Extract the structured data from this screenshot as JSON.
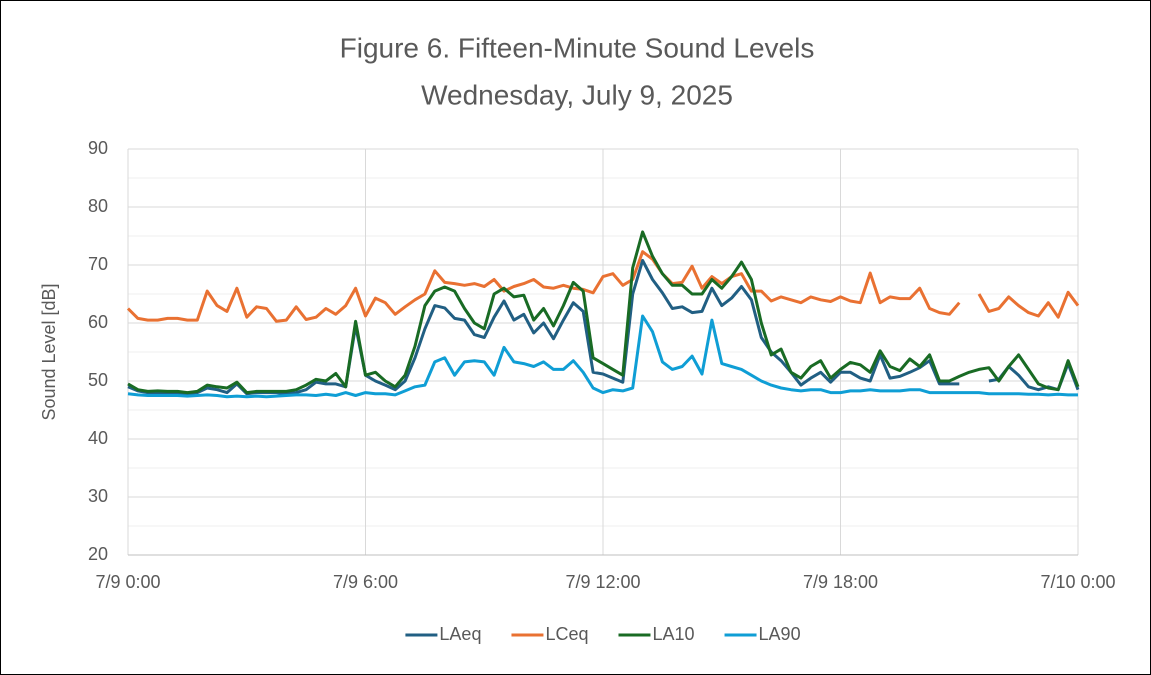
{
  "chart_data": {
    "type": "line",
    "title": "Figure 6. Fifteen-Minute Sound Levels",
    "subtitle": "Wednesday, July 9, 2025",
    "ylabel": "Sound Level [dB]",
    "x": [
      0,
      0.25,
      0.5,
      0.75,
      1,
      1.25,
      1.5,
      1.75,
      2,
      2.25,
      2.5,
      2.75,
      3,
      3.25,
      3.5,
      3.75,
      4,
      4.25,
      4.5,
      4.75,
      5,
      5.25,
      5.5,
      5.75,
      6,
      6.25,
      6.5,
      6.75,
      7,
      7.25,
      7.5,
      7.75,
      8,
      8.25,
      8.5,
      8.75,
      9,
      9.25,
      9.5,
      9.75,
      10,
      10.25,
      10.5,
      10.75,
      11,
      11.25,
      11.5,
      11.75,
      12,
      12.25,
      12.5,
      12.75,
      13,
      13.25,
      13.5,
      13.75,
      14,
      14.25,
      14.5,
      14.75,
      15,
      15.25,
      15.5,
      15.75,
      16,
      16.25,
      16.5,
      16.75,
      17,
      17.25,
      17.5,
      17.75,
      18,
      18.25,
      18.5,
      18.75,
      19,
      19.25,
      19.5,
      19.75,
      20,
      20.25,
      20.5,
      20.75,
      21,
      21.25,
      21.5,
      21.75,
      22,
      22.25,
      22.5,
      22.75,
      23,
      23.25,
      23.5,
      23.75,
      24
    ],
    "series": [
      {
        "name": "LAeq",
        "color": "#215f83",
        "values": [
          49,
          48.3,
          48,
          48,
          48,
          47.8,
          47.8,
          48,
          48.8,
          48.5,
          48,
          49.5,
          47.8,
          48,
          48,
          48,
          47.8,
          48,
          48.5,
          49.8,
          49.5,
          49.5,
          49,
          59.5,
          51,
          50,
          49.3,
          48.5,
          50,
          54,
          59,
          63,
          62.6,
          60.8,
          60.5,
          58,
          57.5,
          61,
          63.8,
          60.5,
          61.5,
          58.3,
          60,
          57.3,
          60.5,
          63.5,
          62,
          51.5,
          51.2,
          50.5,
          49.8,
          65,
          70.8,
          67.5,
          65.2,
          62.5,
          62.8,
          61.8,
          62,
          66,
          63,
          64.3,
          66.3,
          64,
          57.5,
          55,
          53.5,
          51.5,
          49.3,
          50.5,
          51.5,
          49.8,
          51.5,
          51.5,
          50.5,
          50,
          54.5,
          50.5,
          50.8,
          51.5,
          52.3,
          53.5,
          49.5,
          49.5,
          49.5,
          null,
          null,
          50,
          50.3,
          52.5,
          51,
          49,
          48.5,
          49,
          48.5,
          53,
          48.5
        ]
      },
      {
        "name": "LCeq",
        "color": "#e97132",
        "values": [
          62.5,
          60.8,
          60.5,
          60.5,
          60.8,
          60.8,
          60.5,
          60.5,
          65.5,
          63,
          62,
          66,
          61,
          62.8,
          62.5,
          60.3,
          60.5,
          62.8,
          60.6,
          61,
          62.5,
          61.5,
          63,
          66,
          61.2,
          64.3,
          63.5,
          61.5,
          62.8,
          64,
          65,
          69,
          67,
          66.8,
          66.5,
          66.8,
          66.3,
          67.5,
          65.5,
          66.3,
          66.8,
          67.5,
          66.2,
          66,
          66.5,
          66,
          65.8,
          65.2,
          68,
          68.5,
          66.5,
          67.5,
          72.3,
          71,
          68.5,
          66.8,
          67,
          69.8,
          66,
          68,
          66.8,
          68,
          68.5,
          65.5,
          65.5,
          63.8,
          64.5,
          64,
          63.5,
          64.5,
          64,
          63.7,
          64.5,
          63.8,
          63.5,
          68.6,
          63.5,
          64.5,
          64.2,
          64.2,
          66,
          62.5,
          61.8,
          61.5,
          63.5,
          null,
          65,
          62,
          62.5,
          64.5,
          63,
          61.8,
          61.2,
          63.5,
          61,
          65.3,
          63
        ]
      },
      {
        "name": "LA10",
        "color": "#196b24",
        "values": [
          49.5,
          48.5,
          48.2,
          48.3,
          48.2,
          48.2,
          48,
          48.2,
          49.3,
          49,
          48.8,
          49.8,
          48,
          48.2,
          48.2,
          48.2,
          48.2,
          48.5,
          49.3,
          50.3,
          50,
          51.3,
          49,
          60.3,
          51,
          51.5,
          50,
          49,
          51,
          56,
          63,
          65.5,
          66.2,
          65.5,
          62.5,
          60,
          59,
          65,
          66,
          64.5,
          64.8,
          60.5,
          62.5,
          59.5,
          63,
          67,
          65.5,
          54,
          53,
          52,
          51,
          69.5,
          75.7,
          71.5,
          68.5,
          66.5,
          66.5,
          65,
          65,
          67.5,
          66,
          68,
          70.5,
          67.5,
          60,
          54.5,
          55.5,
          51.5,
          50.5,
          52.5,
          53.5,
          50.5,
          52,
          53.2,
          52.8,
          51.5,
          55.2,
          52.5,
          51.8,
          53.8,
          52.5,
          54.5,
          50,
          50,
          50.8,
          51.5,
          52,
          52.3,
          50,
          52.5,
          54.5,
          52,
          49.5,
          48.8,
          48.5,
          53.5,
          49
        ]
      },
      {
        "name": "LA90",
        "color": "#0f9ed5",
        "values": [
          47.8,
          47.6,
          47.5,
          47.5,
          47.5,
          47.5,
          47.4,
          47.5,
          47.6,
          47.5,
          47.3,
          47.4,
          47.3,
          47.4,
          47.3,
          47.4,
          47.5,
          47.6,
          47.6,
          47.5,
          47.7,
          47.5,
          48,
          47.5,
          48,
          47.8,
          47.8,
          47.6,
          48.3,
          49,
          49.3,
          53.3,
          54,
          51,
          53.3,
          53.5,
          53.3,
          51,
          55.8,
          53.3,
          53,
          52.5,
          53.3,
          52,
          52,
          53.5,
          51.5,
          48.8,
          48,
          48.5,
          48.3,
          48.8,
          61.2,
          58.5,
          53.3,
          52,
          52.5,
          54.3,
          51.2,
          60.5,
          53,
          52.5,
          52,
          51,
          50,
          49.3,
          48.8,
          48.5,
          48.3,
          48.5,
          48.5,
          48,
          48,
          48.3,
          48.3,
          48.5,
          48.3,
          48.3,
          48.3,
          48.5,
          48.5,
          48,
          48,
          48,
          48,
          48,
          48,
          47.8,
          47.8,
          47.8,
          47.8,
          47.7,
          47.7,
          47.6,
          47.7,
          47.6,
          47.6
        ]
      }
    ],
    "xlim": [
      0,
      24
    ],
    "xticks": [
      {
        "value": 0,
        "label": "7/9 0:00"
      },
      {
        "value": 6,
        "label": "7/9 6:00"
      },
      {
        "value": 12,
        "label": "7/9 12:00"
      },
      {
        "value": 18,
        "label": "7/9 18:00"
      },
      {
        "value": 24,
        "label": "7/10 0:00"
      }
    ],
    "ylim": [
      20,
      90
    ],
    "yticks": [
      20,
      30,
      40,
      50,
      60,
      70,
      80,
      90
    ],
    "grid": true,
    "legend": "bottom"
  }
}
